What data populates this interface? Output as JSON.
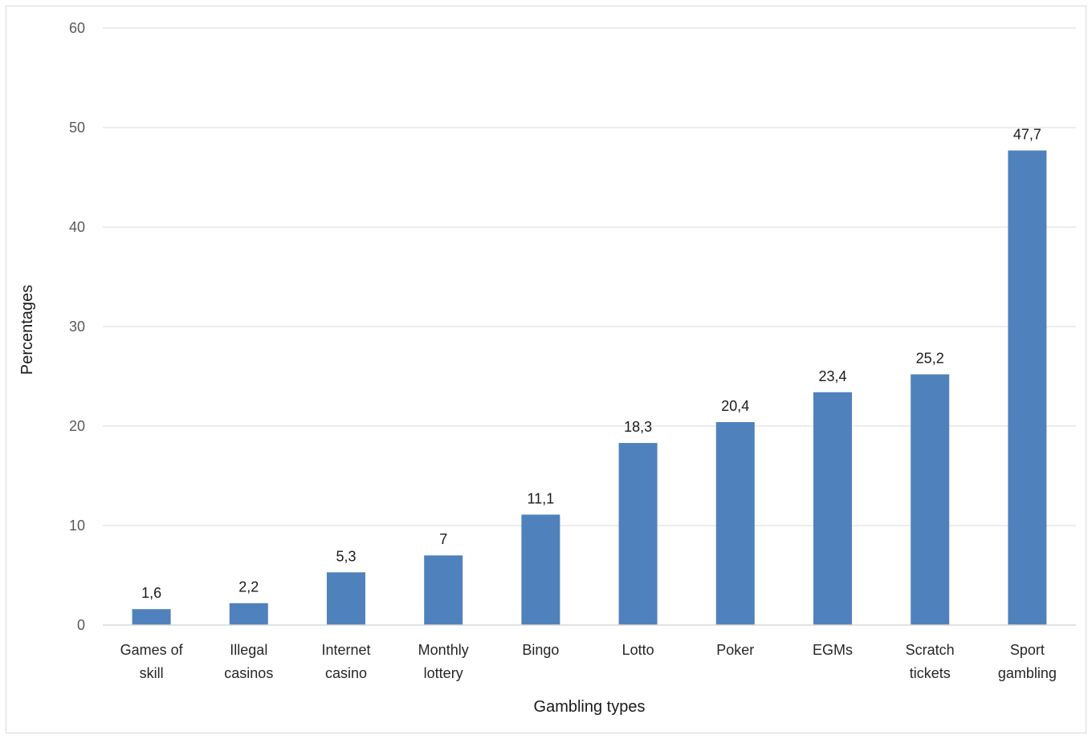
{
  "chart_data": {
    "type": "bar",
    "title": "",
    "xlabel": "Gambling types",
    "ylabel": "Percentages",
    "ylim": [
      0,
      60
    ],
    "yticks": [
      0,
      10,
      20,
      30,
      40,
      50,
      60
    ],
    "grid": true,
    "legend": "none",
    "bar_color": "#4f81bd",
    "categories": [
      [
        "Games of",
        "skill"
      ],
      [
        "Illegal",
        "casinos"
      ],
      [
        "Internet",
        "casino"
      ],
      [
        "Monthly",
        "lottery"
      ],
      [
        "Bingo"
      ],
      [
        "Lotto"
      ],
      [
        "Poker"
      ],
      [
        "EGMs"
      ],
      [
        "Scratch",
        "tickets"
      ],
      [
        "Sport",
        "gambling"
      ]
    ],
    "values": [
      1.6,
      2.2,
      5.3,
      7,
      11.1,
      18.3,
      20.4,
      23.4,
      25.2,
      47.7
    ],
    "value_labels": [
      "1,6",
      "2,2",
      "5,3",
      "7",
      "11,1",
      "18,3",
      "20,4",
      "23,4",
      "25,2",
      "47,7"
    ]
  }
}
